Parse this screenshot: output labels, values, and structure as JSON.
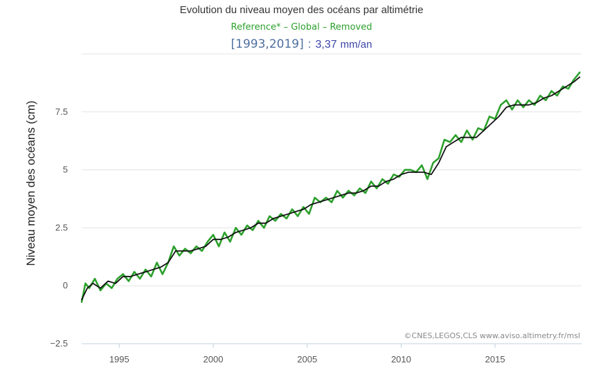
{
  "chart_data": {
    "type": "line",
    "title": "Evolution du niveau moyen des océans par altimétrie",
    "subtitle": "Reference* – Global – Removed",
    "trend": {
      "period": "[1993,2019]",
      "separator": ":",
      "rate": "3,37",
      "unit": "mm/an"
    },
    "xlabel": "",
    "ylabel": "Niveau moyen des océans (cm)",
    "xlim": [
      1993.0,
      2019.6
    ],
    "ylim": [
      -2.5,
      10
    ],
    "xticks": [
      1995,
      2000,
      2005,
      2010,
      2015
    ],
    "xtick_labels": [
      "1995",
      "2000",
      "2005",
      "2010",
      "2015"
    ],
    "yticks": [
      -2.5,
      0,
      2.5,
      5,
      7.5
    ],
    "ytick_labels": [
      "−2.5",
      "0",
      "2.5",
      "5",
      "7.5"
    ],
    "grid": "horizontal",
    "credit": "©CNES,LEGOS,CLS www.aviso.altimetry.fr/msl",
    "series": [
      {
        "color": "#2ca02c",
        "x": [
          1993.0,
          1993.2,
          1993.4,
          1993.7,
          1994.0,
          1994.3,
          1994.6,
          1994.9,
          1995.2,
          1995.5,
          1995.8,
          1996.1,
          1996.4,
          1996.7,
          1997.0,
          1997.3,
          1997.6,
          1997.9,
          1998.2,
          1998.5,
          1998.8,
          1999.1,
          1999.4,
          1999.7,
          2000.0,
          2000.3,
          2000.6,
          2000.9,
          2001.2,
          2001.5,
          2001.8,
          2002.1,
          2002.4,
          2002.7,
          2003.0,
          2003.3,
          2003.6,
          2003.9,
          2004.2,
          2004.5,
          2004.8,
          2005.1,
          2005.4,
          2005.7,
          2006.0,
          2006.3,
          2006.6,
          2006.9,
          2007.2,
          2007.5,
          2007.8,
          2008.1,
          2008.4,
          2008.7,
          2009.0,
          2009.3,
          2009.6,
          2009.9,
          2010.2,
          2010.5,
          2010.8,
          2011.1,
          2011.4,
          2011.7,
          2012.0,
          2012.3,
          2012.6,
          2012.9,
          2013.2,
          2013.5,
          2013.8,
          2014.1,
          2014.4,
          2014.7,
          2015.0,
          2015.3,
          2015.6,
          2015.9,
          2016.2,
          2016.5,
          2016.8,
          2017.1,
          2017.4,
          2017.7,
          2018.0,
          2018.3,
          2018.6,
          2018.9,
          2019.2,
          2019.5
        ],
        "y": [
          -0.7,
          0.1,
          -0.1,
          0.3,
          -0.2,
          0.1,
          -0.1,
          0.3,
          0.5,
          0.2,
          0.6,
          0.3,
          0.7,
          0.4,
          1.0,
          0.5,
          1.0,
          1.7,
          1.3,
          1.6,
          1.4,
          1.7,
          1.5,
          1.9,
          2.2,
          1.7,
          2.3,
          1.9,
          2.5,
          2.2,
          2.6,
          2.4,
          2.8,
          2.5,
          3.0,
          2.8,
          3.1,
          2.9,
          3.3,
          3.0,
          3.4,
          3.1,
          3.8,
          3.6,
          3.8,
          3.6,
          4.1,
          3.8,
          4.1,
          3.9,
          4.2,
          4.0,
          4.5,
          4.2,
          4.6,
          4.4,
          4.8,
          4.7,
          5.0,
          5.0,
          4.9,
          5.2,
          4.6,
          5.3,
          5.5,
          6.3,
          6.2,
          6.5,
          6.2,
          6.7,
          6.3,
          6.8,
          6.7,
          7.3,
          7.2,
          7.8,
          8.0,
          7.6,
          8.0,
          7.7,
          8.0,
          7.8,
          8.2,
          8.0,
          8.4,
          8.2,
          8.6,
          8.5,
          8.9,
          9.2
        ]
      },
      {
        "color": "#111111",
        "x": [
          1993.0,
          1993.3,
          1993.6,
          1994.0,
          1994.4,
          1994.8,
          1995.2,
          1995.6,
          1996.0,
          1996.4,
          1996.8,
          1997.2,
          1997.6,
          1998.0,
          1998.4,
          1998.8,
          1999.2,
          1999.6,
          2000.0,
          2000.4,
          2000.8,
          2001.2,
          2001.6,
          2002.0,
          2002.4,
          2002.8,
          2003.2,
          2003.6,
          2004.0,
          2004.4,
          2004.8,
          2005.2,
          2005.6,
          2006.0,
          2006.4,
          2006.8,
          2007.2,
          2007.6,
          2008.0,
          2008.4,
          2008.8,
          2009.2,
          2009.6,
          2010.0,
          2010.4,
          2010.8,
          2011.2,
          2011.6,
          2012.0,
          2012.4,
          2012.8,
          2013.2,
          2013.6,
          2014.0,
          2014.4,
          2014.8,
          2015.2,
          2015.6,
          2016.0,
          2016.4,
          2016.8,
          2017.2,
          2017.6,
          2018.0,
          2018.4,
          2018.8,
          2019.2,
          2019.5
        ],
        "y": [
          -0.6,
          -0.1,
          0.1,
          -0.1,
          0.2,
          0.1,
          0.4,
          0.4,
          0.5,
          0.6,
          0.7,
          0.8,
          1.0,
          1.5,
          1.5,
          1.5,
          1.6,
          1.7,
          2.0,
          2.0,
          2.1,
          2.3,
          2.4,
          2.5,
          2.7,
          2.7,
          2.9,
          3.0,
          3.1,
          3.2,
          3.3,
          3.5,
          3.6,
          3.7,
          3.8,
          3.9,
          4.0,
          4.0,
          4.1,
          4.3,
          4.3,
          4.5,
          4.6,
          4.8,
          4.9,
          4.9,
          4.9,
          4.8,
          5.3,
          6.0,
          6.2,
          6.4,
          6.4,
          6.4,
          6.7,
          7.0,
          7.3,
          7.7,
          7.8,
          7.8,
          7.8,
          7.9,
          8.1,
          8.2,
          8.4,
          8.6,
          8.8,
          9.0
        ]
      }
    ]
  }
}
